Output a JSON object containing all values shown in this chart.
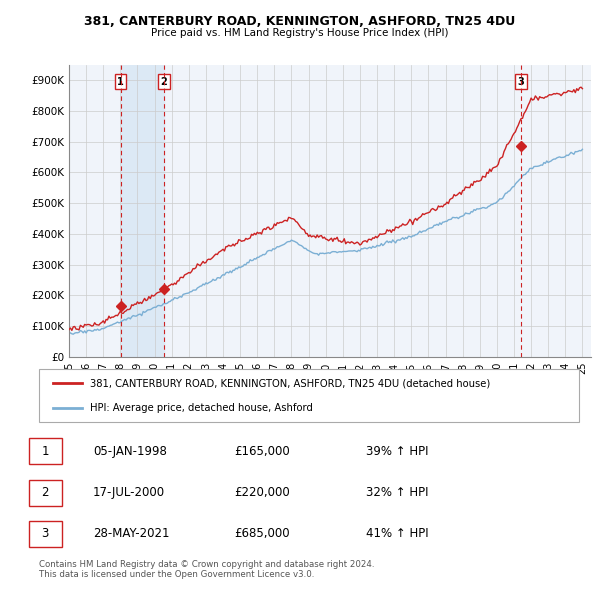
{
  "title": "381, CANTERBURY ROAD, KENNINGTON, ASHFORD, TN25 4DU",
  "subtitle": "Price paid vs. HM Land Registry's House Price Index (HPI)",
  "ylim": [
    0,
    950000
  ],
  "yticks": [
    0,
    100000,
    200000,
    300000,
    400000,
    500000,
    600000,
    700000,
    800000,
    900000
  ],
  "ytick_labels": [
    "£0",
    "£100K",
    "£200K",
    "£300K",
    "£400K",
    "£500K",
    "£600K",
    "£700K",
    "£800K",
    "£900K"
  ],
  "sale_year_floats": [
    1998.014,
    2000.542,
    2021.405
  ],
  "sale_prices": [
    165000,
    220000,
    685000
  ],
  "sale_labels": [
    "1",
    "2",
    "3"
  ],
  "hpi_color": "#7bafd4",
  "price_color": "#cc2222",
  "vline_color": "#cc2222",
  "shade_color": "#dce9f5",
  "legend_line1": "381, CANTERBURY ROAD, KENNINGTON, ASHFORD, TN25 4DU (detached house)",
  "legend_line2": "HPI: Average price, detached house, Ashford",
  "table_rows": [
    [
      "1",
      "05-JAN-1998",
      "£165,000",
      "39% ↑ HPI"
    ],
    [
      "2",
      "17-JUL-2000",
      "£220,000",
      "32% ↑ HPI"
    ],
    [
      "3",
      "28-MAY-2021",
      "£685,000",
      "41% ↑ HPI"
    ]
  ],
  "footnote": "Contains HM Land Registry data © Crown copyright and database right 2024.\nThis data is licensed under the Open Government Licence v3.0.",
  "grid_color": "#cccccc",
  "plot_bg_color": "#f0f4fa"
}
